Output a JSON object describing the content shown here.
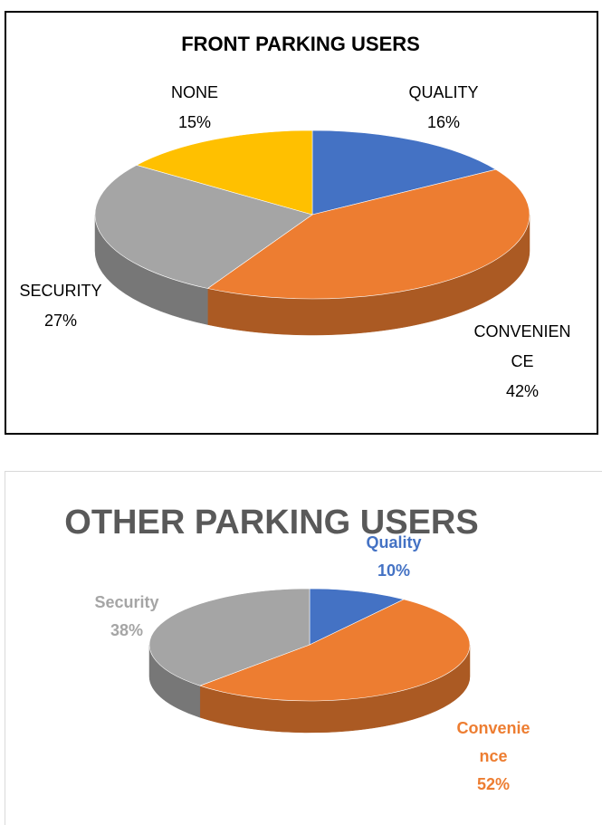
{
  "chart_data": [
    {
      "type": "pie",
      "title": "FRONT PARKING USERS",
      "categories": [
        "QUALITY",
        "CONVENIENCE",
        "SECURITY",
        "NONE"
      ],
      "values": [
        16,
        42,
        27,
        15
      ],
      "value_labels": [
        "16%",
        "42%",
        "27%",
        "15%"
      ],
      "colors": [
        "#4472c4",
        "#ed7d31",
        "#a5a5a5",
        "#ffc000"
      ]
    },
    {
      "type": "pie",
      "title": "OTHER PARKING USERS",
      "categories": [
        "Quality",
        "Convenience",
        "Security"
      ],
      "values": [
        10,
        52,
        38
      ],
      "value_labels": [
        "10%",
        "52%",
        "38%"
      ],
      "colors": [
        "#4472c4",
        "#ed7d31",
        "#a5a5a5"
      ]
    }
  ]
}
